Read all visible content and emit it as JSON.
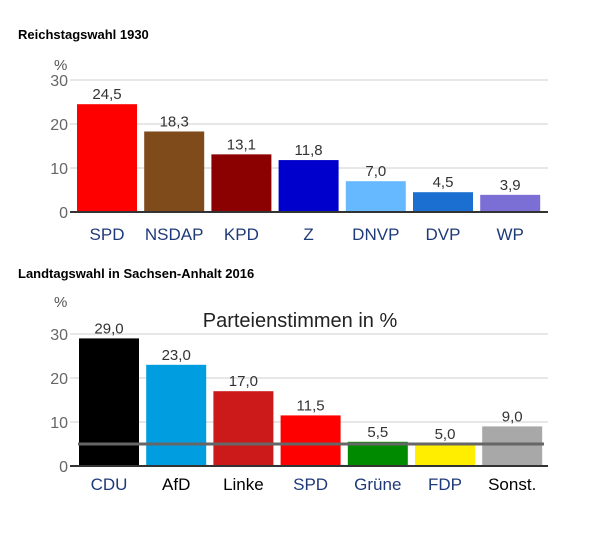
{
  "chart_data": [
    {
      "type": "bar",
      "title": "Reichstagswahl 1930",
      "ylabel": "%",
      "ylim": [
        0,
        30
      ],
      "yticks": [
        0,
        10,
        20,
        30
      ],
      "grid": true,
      "categories": [
        "SPD",
        "NSDAP",
        "KPD",
        "Z",
        "DNVP",
        "DVP",
        "WP"
      ],
      "values": [
        24.5,
        18.3,
        13.1,
        11.8,
        7.0,
        4.5,
        3.9
      ],
      "value_labels": [
        "24,5",
        "18,3",
        "13,1",
        "11,8",
        "7,0",
        "4,5",
        "3,9"
      ],
      "colors": [
        "#ff0000",
        "#7f4b1b",
        "#8b0000",
        "#0000cc",
        "#66b8ff",
        "#1a6fd1",
        "#7b6fd6"
      ]
    },
    {
      "type": "bar",
      "title": "Landtagswahl in Sachsen-Anhalt 2016",
      "subtitle": "Parteienstimmen in %",
      "ylabel": "%",
      "ylim": [
        0,
        30
      ],
      "yticks": [
        0,
        10,
        20,
        30
      ],
      "grid": true,
      "threshold": 5,
      "categories": [
        "CDU",
        "AfD",
        "Linke",
        "SPD",
        "Grüne",
        "FDP",
        "Sonst."
      ],
      "values": [
        29.0,
        23.0,
        17.0,
        11.5,
        5.5,
        5.0,
        9.0
      ],
      "value_labels": [
        "29,0",
        "23,0",
        "17,0",
        "11,5",
        "5,5",
        "5,0",
        "9,0"
      ],
      "colors": [
        "#000000",
        "#009ee0",
        "#cc1a1a",
        "#ff0000",
        "#008a00",
        "#ffee00",
        "#a8a8a8"
      ],
      "label_colors": [
        "#1f3a7a",
        "#000000",
        "#000000",
        "#1f3a7a",
        "#1f3a7a",
        "#1f3a7a",
        "#000000"
      ]
    }
  ]
}
